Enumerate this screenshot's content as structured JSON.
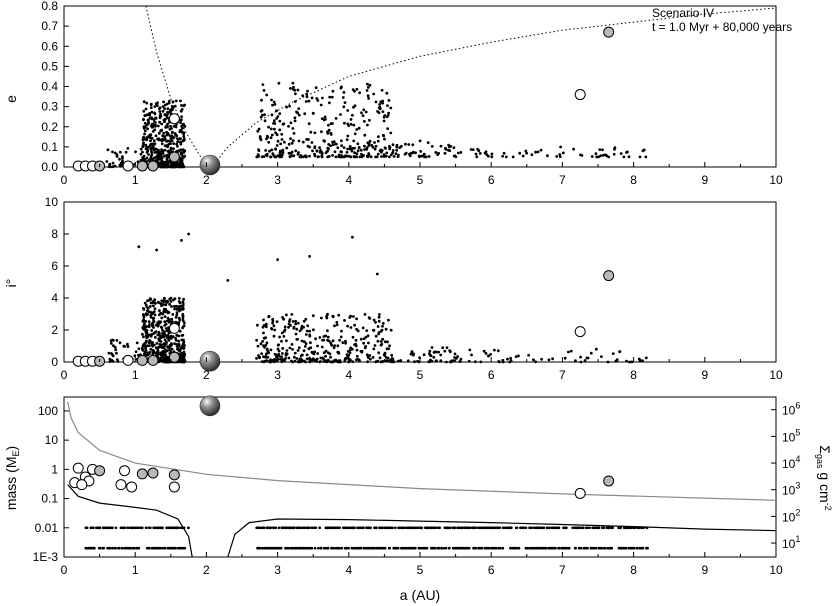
{
  "chart_data": [
    {
      "type": "scatter",
      "panel": "eccentricity",
      "ylabel": "e",
      "xlim": [
        0,
        10
      ],
      "ylim": [
        0,
        0.8
      ],
      "xticks": [
        "0",
        "1",
        "2",
        "3",
        "4",
        "5",
        "6",
        "7",
        "8",
        "9",
        "10"
      ],
      "yticks": [
        "0.0",
        "0.1",
        "0.2",
        "0.3",
        "0.4",
        "0.5",
        "0.6",
        "0.7",
        "0.8"
      ],
      "annotation": [
        "Scenario IV",
        "t = 1.0 Myr + 80,000 years"
      ],
      "large_bodies": [
        {
          "a": 7.25,
          "e": 0.36,
          "style": "open"
        },
        {
          "a": 7.65,
          "e": 0.67,
          "style": "grey"
        },
        {
          "a": 2.05,
          "e": 0.01,
          "style": "giant"
        },
        {
          "a": 1.55,
          "e": 0.24,
          "style": "open"
        },
        {
          "a": 1.55,
          "e": 0.05,
          "style": "grey"
        },
        {
          "a": 0.9,
          "e": 0.005,
          "style": "open"
        },
        {
          "a": 1.1,
          "e": 0.005,
          "style": "grey"
        },
        {
          "a": 1.25,
          "e": 0.005,
          "style": "grey"
        },
        {
          "a": 0.2,
          "e": 0.005,
          "style": "open"
        },
        {
          "a": 0.3,
          "e": 0.005,
          "style": "open"
        },
        {
          "a": 0.4,
          "e": 0.005,
          "style": "open"
        },
        {
          "a": 0.5,
          "e": 0.005,
          "style": "grey"
        }
      ],
      "small_bodies_regions": [
        {
          "a_range": [
            1.1,
            1.7
          ],
          "e_range": [
            0.0,
            0.33
          ],
          "count": 520
        },
        {
          "a_range": [
            0.6,
            1.1
          ],
          "e_range": [
            0.0,
            0.1
          ],
          "count": 40
        },
        {
          "a_range": [
            2.7,
            4.6
          ],
          "e_range": [
            0.05,
            0.42
          ],
          "count": 360
        },
        {
          "a_range": [
            4.6,
            5.5
          ],
          "e_range": [
            0.05,
            0.13
          ],
          "count": 50
        },
        {
          "a_range": [
            5.5,
            8.2
          ],
          "e_range": [
            0.05,
            0.1
          ],
          "count": 60
        }
      ],
      "curves": [
        {
          "name": "inner boundary",
          "style": "dotted",
          "x": [
            1.15,
            1.3,
            1.5,
            1.7,
            1.9,
            2.02
          ],
          "y": [
            0.8,
            0.57,
            0.34,
            0.18,
            0.06,
            0.0
          ]
        },
        {
          "name": "outer boundary",
          "style": "dotted",
          "x": [
            2.08,
            2.3,
            2.7,
            3.2,
            4,
            5,
            6,
            7,
            8,
            9,
            10
          ],
          "y": [
            0.0,
            0.1,
            0.22,
            0.32,
            0.45,
            0.55,
            0.62,
            0.68,
            0.72,
            0.76,
            0.79
          ]
        }
      ]
    },
    {
      "type": "scatter",
      "panel": "inclination",
      "ylabel": "i°",
      "xlim": [
        0,
        10
      ],
      "ylim": [
        0,
        10
      ],
      "xticks": [
        "0",
        "1",
        "2",
        "3",
        "4",
        "5",
        "6",
        "7",
        "8",
        "9",
        "10"
      ],
      "yticks": [
        "0",
        "2",
        "4",
        "6",
        "8",
        "10"
      ],
      "large_bodies": [
        {
          "a": 7.25,
          "i": 1.9,
          "style": "open"
        },
        {
          "a": 7.65,
          "i": 5.4,
          "style": "grey"
        },
        {
          "a": 2.05,
          "i": 0.05,
          "style": "giant"
        },
        {
          "a": 1.55,
          "i": 2.1,
          "style": "open"
        },
        {
          "a": 1.55,
          "i": 0.3,
          "style": "grey"
        },
        {
          "a": 0.9,
          "i": 0.1,
          "style": "open"
        },
        {
          "a": 1.1,
          "i": 0.1,
          "style": "grey"
        },
        {
          "a": 1.25,
          "i": 0.1,
          "style": "grey"
        },
        {
          "a": 0.2,
          "i": 0.05,
          "style": "open"
        },
        {
          "a": 0.3,
          "i": 0.05,
          "style": "open"
        },
        {
          "a": 0.4,
          "i": 0.05,
          "style": "open"
        },
        {
          "a": 0.5,
          "i": 0.05,
          "style": "grey"
        }
      ],
      "small_bodies_regions": [
        {
          "a_range": [
            1.1,
            1.7
          ],
          "i_range": [
            0.0,
            4.0
          ],
          "count": 520
        },
        {
          "a_range": [
            0.6,
            1.1
          ],
          "i_range": [
            0.0,
            1.5
          ],
          "count": 40
        },
        {
          "a_range": [
            2.7,
            4.6
          ],
          "i_range": [
            0.0,
            3.0
          ],
          "count": 360
        },
        {
          "a_range": [
            4.6,
            5.5
          ],
          "i_range": [
            0.0,
            1.0
          ],
          "count": 50
        },
        {
          "a_range": [
            5.5,
            8.2
          ],
          "i_range": [
            0.0,
            0.8
          ],
          "count": 60
        }
      ],
      "outliers": [
        {
          "a": 1.75,
          "i": 8.0
        },
        {
          "a": 1.65,
          "i": 7.6
        },
        {
          "a": 1.05,
          "i": 7.2
        },
        {
          "a": 1.3,
          "i": 7.0
        },
        {
          "a": 4.05,
          "i": 7.8
        },
        {
          "a": 3.45,
          "i": 6.6
        },
        {
          "a": 3.0,
          "i": 6.4
        },
        {
          "a": 4.4,
          "i": 5.5
        },
        {
          "a": 2.3,
          "i": 5.1
        }
      ]
    },
    {
      "type": "scatter",
      "panel": "mass",
      "ylabel": "mass (M_E)",
      "ylabel_parts": {
        "base": "mass (M",
        "sub": "E",
        "close": ")"
      },
      "y2label_parts": {
        "sigma": "Σ",
        "sub": "gas",
        "unit": " g cm",
        "sup": "-2"
      },
      "xlabel": "a (AU)",
      "xlim": [
        0,
        10
      ],
      "ylim": [
        0.001,
        300
      ],
      "yscale": "log",
      "y2lim": [
        3,
        3000000
      ],
      "y2scale": "log",
      "xticks": [
        "0",
        "1",
        "2",
        "3",
        "4",
        "5",
        "6",
        "7",
        "8",
        "9",
        "10"
      ],
      "yticks": [
        "1E-3",
        "0.01",
        "0.1",
        "1",
        "10",
        "100"
      ],
      "y2ticks": [
        "10^1",
        "10^2",
        "10^3",
        "10^4",
        "10^5",
        "10^6"
      ],
      "large_bodies": [
        {
          "a": 2.05,
          "m": 150,
          "style": "giant"
        },
        {
          "a": 7.25,
          "m": 0.15,
          "style": "open"
        },
        {
          "a": 7.65,
          "m": 0.4,
          "style": "grey"
        },
        {
          "a": 0.2,
          "m": 1.1,
          "style": "open"
        },
        {
          "a": 0.3,
          "m": 0.55,
          "style": "open"
        },
        {
          "a": 0.35,
          "m": 0.4,
          "style": "open"
        },
        {
          "a": 0.4,
          "m": 1.0,
          "style": "open"
        },
        {
          "a": 0.5,
          "m": 0.9,
          "style": "grey"
        },
        {
          "a": 0.15,
          "m": 0.35,
          "style": "open"
        },
        {
          "a": 0.25,
          "m": 0.3,
          "style": "open"
        },
        {
          "a": 0.85,
          "m": 0.9,
          "style": "open"
        },
        {
          "a": 0.8,
          "m": 0.3,
          "style": "open"
        },
        {
          "a": 0.95,
          "m": 0.25,
          "style": "open"
        },
        {
          "a": 1.1,
          "m": 0.7,
          "style": "grey"
        },
        {
          "a": 1.25,
          "m": 0.75,
          "style": "grey"
        },
        {
          "a": 1.55,
          "m": 0.65,
          "style": "grey"
        },
        {
          "a": 1.55,
          "m": 0.25,
          "style": "open"
        }
      ],
      "small_body_masses": [
        0.01,
        0.002
      ],
      "small_body_a_ranges": [
        [
          0.3,
          1.75
        ],
        [
          2.7,
          8.2
        ]
      ],
      "curves": [
        {
          "name": "gas surface density",
          "style": "grey",
          "axis": "right",
          "x": [
            0.05,
            0.1,
            0.2,
            0.5,
            1,
            2,
            3,
            5,
            7,
            10
          ],
          "y": [
            2000000,
            500000,
            140000,
            30000,
            10000,
            3800,
            2200,
            1100,
            700,
            400
          ]
        },
        {
          "name": "inner isolation mass",
          "style": "black",
          "axis": "left",
          "x": [
            0.05,
            0.2,
            0.5,
            1.0,
            1.3,
            1.6,
            1.75,
            1.8
          ],
          "y": [
            0.3,
            0.12,
            0.07,
            0.05,
            0.04,
            0.02,
            0.005,
            0.001
          ]
        },
        {
          "name": "outer isolation mass",
          "style": "black",
          "axis": "left",
          "x": [
            2.3,
            2.4,
            2.6,
            3.0,
            4,
            5,
            6,
            7,
            8,
            9,
            10
          ],
          "y": [
            0.001,
            0.006,
            0.015,
            0.02,
            0.019,
            0.017,
            0.015,
            0.013,
            0.011,
            0.009,
            0.008
          ]
        }
      ]
    }
  ]
}
